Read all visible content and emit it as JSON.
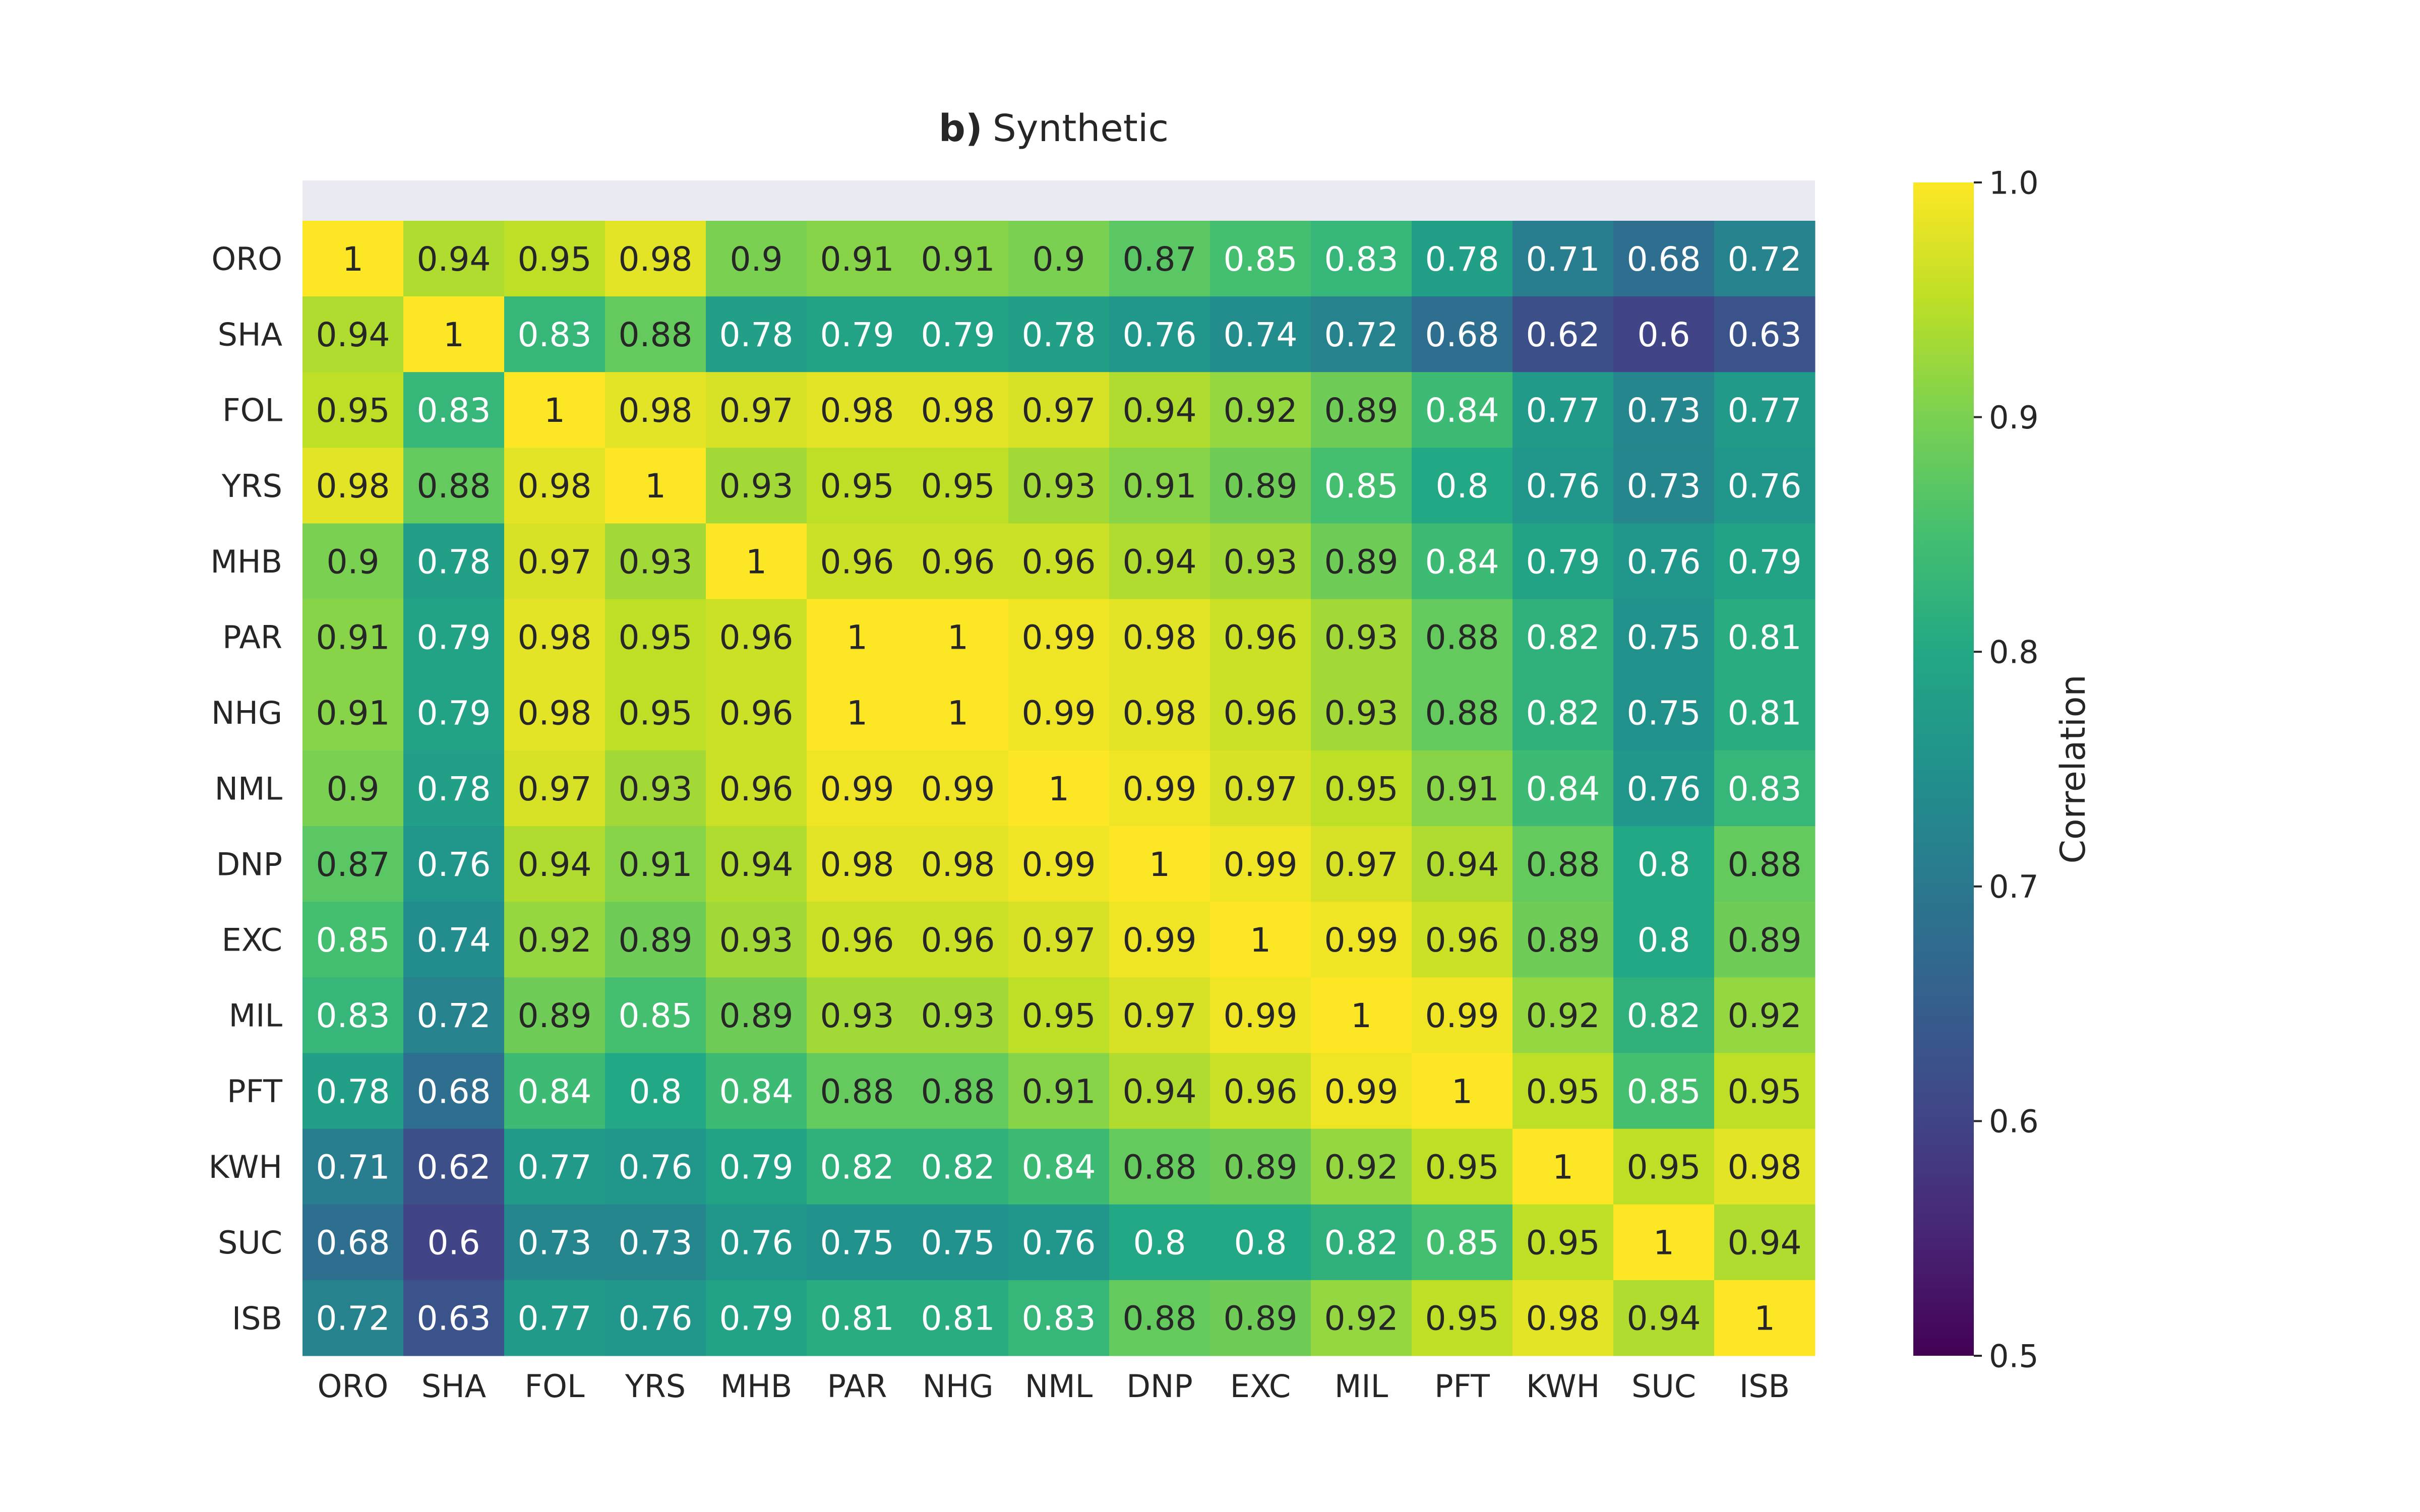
{
  "chart_data": {
    "type": "heatmap",
    "title_prefix": "b)",
    "title": "Synthetic",
    "row_labels": [
      "ORO",
      "SHA",
      "FOL",
      "YRS",
      "MHB",
      "PAR",
      "NHG",
      "NML",
      "DNP",
      "EXC",
      "MIL",
      "PFT",
      "KWH",
      "SUC",
      "ISB"
    ],
    "col_labels": [
      "ORO",
      "SHA",
      "FOL",
      "YRS",
      "MHB",
      "PAR",
      "NHG",
      "NML",
      "DNP",
      "EXC",
      "MIL",
      "PFT",
      "KWH",
      "SUC",
      "ISB"
    ],
    "values": [
      [
        1,
        0.94,
        0.95,
        0.98,
        0.9,
        0.91,
        0.91,
        0.9,
        0.87,
        0.85,
        0.83,
        0.78,
        0.71,
        0.68,
        0.72
      ],
      [
        0.94,
        1,
        0.83,
        0.88,
        0.78,
        0.79,
        0.79,
        0.78,
        0.76,
        0.74,
        0.72,
        0.68,
        0.62,
        0.6,
        0.63
      ],
      [
        0.95,
        0.83,
        1,
        0.98,
        0.97,
        0.98,
        0.98,
        0.97,
        0.94,
        0.92,
        0.89,
        0.84,
        0.77,
        0.73,
        0.77
      ],
      [
        0.98,
        0.88,
        0.98,
        1,
        0.93,
        0.95,
        0.95,
        0.93,
        0.91,
        0.89,
        0.85,
        0.8,
        0.76,
        0.73,
        0.76
      ],
      [
        0.9,
        0.78,
        0.97,
        0.93,
        1,
        0.96,
        0.96,
        0.96,
        0.94,
        0.93,
        0.89,
        0.84,
        0.79,
        0.76,
        0.79
      ],
      [
        0.91,
        0.79,
        0.98,
        0.95,
        0.96,
        1,
        1,
        0.99,
        0.98,
        0.96,
        0.93,
        0.88,
        0.82,
        0.75,
        0.81
      ],
      [
        0.91,
        0.79,
        0.98,
        0.95,
        0.96,
        1,
        1,
        0.99,
        0.98,
        0.96,
        0.93,
        0.88,
        0.82,
        0.75,
        0.81
      ],
      [
        0.9,
        0.78,
        0.97,
        0.93,
        0.96,
        0.99,
        0.99,
        1,
        0.99,
        0.97,
        0.95,
        0.91,
        0.84,
        0.76,
        0.83
      ],
      [
        0.87,
        0.76,
        0.94,
        0.91,
        0.94,
        0.98,
        0.98,
        0.99,
        1,
        0.99,
        0.97,
        0.94,
        0.88,
        0.8,
        0.88
      ],
      [
        0.85,
        0.74,
        0.92,
        0.89,
        0.93,
        0.96,
        0.96,
        0.97,
        0.99,
        1,
        0.99,
        0.96,
        0.89,
        0.8,
        0.89
      ],
      [
        0.83,
        0.72,
        0.89,
        0.85,
        0.89,
        0.93,
        0.93,
        0.95,
        0.97,
        0.99,
        1,
        0.99,
        0.92,
        0.82,
        0.92
      ],
      [
        0.78,
        0.68,
        0.84,
        0.8,
        0.84,
        0.88,
        0.88,
        0.91,
        0.94,
        0.96,
        0.99,
        1,
        0.95,
        0.85,
        0.95
      ],
      [
        0.71,
        0.62,
        0.77,
        0.76,
        0.79,
        0.82,
        0.82,
        0.84,
        0.88,
        0.89,
        0.92,
        0.95,
        1,
        0.95,
        0.98
      ],
      [
        0.68,
        0.6,
        0.73,
        0.73,
        0.76,
        0.75,
        0.75,
        0.76,
        0.8,
        0.8,
        0.82,
        0.85,
        0.95,
        1,
        0.94
      ],
      [
        0.72,
        0.63,
        0.77,
        0.76,
        0.79,
        0.81,
        0.81,
        0.83,
        0.88,
        0.89,
        0.92,
        0.95,
        0.98,
        0.94,
        1
      ]
    ],
    "colorbar": {
      "label": "Correlation",
      "vmin": 0.5,
      "vmax": 1.0,
      "ticks": [
        "0.5",
        "0.6",
        "0.7",
        "0.8",
        "0.9",
        "1.0"
      ],
      "colormap": "viridis"
    },
    "colors": {
      "background": "#ffffff",
      "empty_row_band": "#eaeaf2",
      "text_dark": "#262626",
      "text_light": "#ffffff"
    }
  }
}
